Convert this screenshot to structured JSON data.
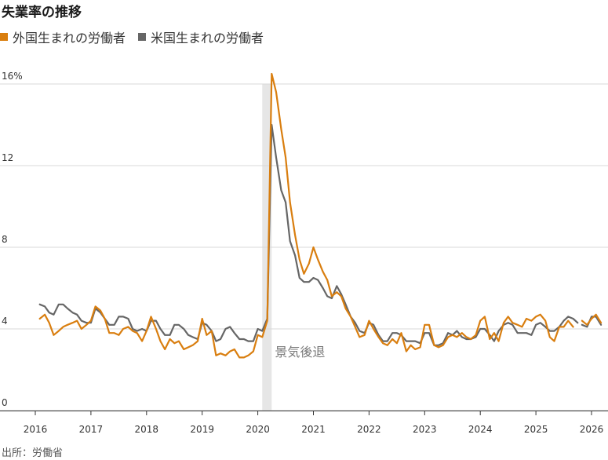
{
  "title": "失業率の推移",
  "source": "出所：労働省",
  "colors": {
    "foreign": "#d97e0f",
    "native": "#666666",
    "recession": "#e6e6e6",
    "grid": "#d8d8d8"
  },
  "chart_data": {
    "type": "line",
    "title": "失業率の推移",
    "xlabel": "",
    "ylabel": "",
    "xlim": [
      2016,
      2026.3
    ],
    "ylim": [
      0,
      16
    ],
    "yticks": [
      0,
      4,
      8,
      12,
      16
    ],
    "ytick_labels": [
      "0",
      "4",
      "8",
      "12",
      "16%"
    ],
    "xticks": [
      "2016",
      "2017",
      "2018",
      "2019",
      "2020",
      "2021",
      "2022",
      "2023",
      "2024",
      "2025",
      "2026"
    ],
    "grid": "horizontal",
    "legend_position": "top-left",
    "recession": {
      "start": 2020.08,
      "end": 2020.25,
      "label": "景気後退"
    },
    "series": [
      {
        "name": "外国生まれの労働者",
        "color_key": "foreign",
        "segments": [
          [
            [
              2016.08,
              4.5
            ],
            [
              2016.17,
              4.7
            ],
            [
              2016.25,
              4.3
            ],
            [
              2016.33,
              3.7
            ],
            [
              2016.42,
              3.9
            ],
            [
              2016.5,
              4.1
            ],
            [
              2016.58,
              4.2
            ],
            [
              2016.67,
              4.3
            ],
            [
              2016.75,
              4.4
            ],
            [
              2016.83,
              4.0
            ],
            [
              2016.92,
              4.2
            ],
            [
              2017.0,
              4.4
            ],
            [
              2017.08,
              5.1
            ],
            [
              2017.17,
              4.9
            ],
            [
              2017.25,
              4.5
            ],
            [
              2017.33,
              3.8
            ],
            [
              2017.42,
              3.8
            ],
            [
              2017.5,
              3.7
            ],
            [
              2017.58,
              4.0
            ],
            [
              2017.67,
              4.1
            ],
            [
              2017.75,
              3.9
            ],
            [
              2017.83,
              3.8
            ],
            [
              2017.92,
              3.4
            ],
            [
              2018.0,
              3.9
            ],
            [
              2018.08,
              4.6
            ],
            [
              2018.17,
              4.0
            ],
            [
              2018.25,
              3.4
            ],
            [
              2018.33,
              3.0
            ],
            [
              2018.42,
              3.5
            ],
            [
              2018.5,
              3.3
            ],
            [
              2018.58,
              3.4
            ],
            [
              2018.67,
              3.0
            ],
            [
              2018.75,
              3.1
            ],
            [
              2018.83,
              3.2
            ],
            [
              2018.92,
              3.4
            ],
            [
              2019.0,
              4.5
            ],
            [
              2019.08,
              3.7
            ],
            [
              2019.17,
              3.9
            ],
            [
              2019.25,
              2.7
            ],
            [
              2019.33,
              2.8
            ],
            [
              2019.42,
              2.7
            ],
            [
              2019.5,
              2.9
            ],
            [
              2019.58,
              3.0
            ],
            [
              2019.67,
              2.6
            ],
            [
              2019.75,
              2.6
            ],
            [
              2019.83,
              2.7
            ],
            [
              2019.92,
              2.9
            ],
            [
              2020.0,
              3.7
            ],
            [
              2020.08,
              3.6
            ],
            [
              2020.17,
              4.4
            ],
            [
              2020.25,
              16.5
            ],
            [
              2020.33,
              15.6
            ],
            [
              2020.42,
              13.8
            ],
            [
              2020.5,
              12.4
            ],
            [
              2020.58,
              10.2
            ],
            [
              2020.67,
              8.6
            ],
            [
              2020.75,
              7.4
            ],
            [
              2020.83,
              6.7
            ],
            [
              2020.92,
              7.2
            ],
            [
              2021.0,
              8.0
            ],
            [
              2021.08,
              7.4
            ],
            [
              2021.17,
              6.8
            ],
            [
              2021.25,
              6.4
            ],
            [
              2021.33,
              5.6
            ],
            [
              2021.42,
              5.8
            ],
            [
              2021.5,
              5.6
            ],
            [
              2021.58,
              5.0
            ],
            [
              2021.67,
              4.6
            ],
            [
              2021.75,
              4.1
            ],
            [
              2021.83,
              3.6
            ],
            [
              2021.92,
              3.7
            ],
            [
              2022.0,
              4.4
            ],
            [
              2022.08,
              4.0
            ],
            [
              2022.17,
              3.6
            ],
            [
              2022.25,
              3.3
            ],
            [
              2022.33,
              3.2
            ],
            [
              2022.42,
              3.5
            ],
            [
              2022.5,
              3.3
            ],
            [
              2022.58,
              3.8
            ],
            [
              2022.67,
              2.9
            ],
            [
              2022.75,
              3.2
            ],
            [
              2022.83,
              3.0
            ],
            [
              2022.92,
              3.1
            ],
            [
              2023.0,
              4.2
            ],
            [
              2023.08,
              4.2
            ],
            [
              2023.17,
              3.2
            ],
            [
              2023.25,
              3.1
            ],
            [
              2023.33,
              3.2
            ],
            [
              2023.42,
              3.6
            ],
            [
              2023.5,
              3.7
            ],
            [
              2023.58,
              3.6
            ],
            [
              2023.67,
              3.8
            ],
            [
              2023.75,
              3.6
            ],
            [
              2023.83,
              3.5
            ],
            [
              2023.92,
              3.7
            ],
            [
              2024.0,
              4.4
            ],
            [
              2024.08,
              4.6
            ],
            [
              2024.17,
              3.5
            ],
            [
              2024.25,
              3.8
            ],
            [
              2024.33,
              3.4
            ],
            [
              2024.42,
              4.3
            ],
            [
              2024.5,
              4.6
            ],
            [
              2024.58,
              4.3
            ],
            [
              2024.67,
              4.2
            ],
            [
              2024.75,
              4.1
            ],
            [
              2024.83,
              4.5
            ],
            [
              2024.92,
              4.4
            ],
            [
              2025.0,
              4.6
            ],
            [
              2025.08,
              4.7
            ],
            [
              2025.17,
              4.4
            ],
            [
              2025.25,
              3.6
            ],
            [
              2025.33,
              3.4
            ],
            [
              2025.42,
              4.1
            ],
            [
              2025.5,
              4.1
            ],
            [
              2025.58,
              4.4
            ],
            [
              2025.67,
              4.1
            ]
          ],
          [
            [
              2025.83,
              4.4
            ],
            [
              2025.92,
              4.2
            ],
            [
              2026.0,
              4.5
            ],
            [
              2026.08,
              4.7
            ],
            [
              2026.17,
              4.3
            ]
          ]
        ]
      },
      {
        "name": "米国生まれの労働者",
        "color_key": "native",
        "segments": [
          [
            [
              2016.08,
              5.2
            ],
            [
              2016.17,
              5.1
            ],
            [
              2016.25,
              4.8
            ],
            [
              2016.33,
              4.7
            ],
            [
              2016.42,
              5.2
            ],
            [
              2016.5,
              5.2
            ],
            [
              2016.58,
              5.0
            ],
            [
              2016.67,
              4.8
            ],
            [
              2016.75,
              4.7
            ],
            [
              2016.83,
              4.4
            ],
            [
              2016.92,
              4.3
            ],
            [
              2017.0,
              4.3
            ],
            [
              2017.08,
              5.0
            ],
            [
              2017.17,
              4.8
            ],
            [
              2017.25,
              4.5
            ],
            [
              2017.33,
              4.2
            ],
            [
              2017.42,
              4.2
            ],
            [
              2017.5,
              4.6
            ],
            [
              2017.58,
              4.6
            ],
            [
              2017.67,
              4.5
            ],
            [
              2017.75,
              4.0
            ],
            [
              2017.83,
              3.9
            ],
            [
              2017.92,
              4.0
            ],
            [
              2018.0,
              3.9
            ],
            [
              2018.08,
              4.4
            ],
            [
              2018.17,
              4.4
            ],
            [
              2018.25,
              4.0
            ],
            [
              2018.33,
              3.7
            ],
            [
              2018.42,
              3.7
            ],
            [
              2018.5,
              4.2
            ],
            [
              2018.58,
              4.2
            ],
            [
              2018.67,
              4.0
            ],
            [
              2018.75,
              3.7
            ],
            [
              2018.83,
              3.6
            ],
            [
              2018.92,
              3.5
            ],
            [
              2019.0,
              4.3
            ],
            [
              2019.08,
              4.2
            ],
            [
              2019.17,
              3.9
            ],
            [
              2019.25,
              3.4
            ],
            [
              2019.33,
              3.5
            ],
            [
              2019.42,
              4.0
            ],
            [
              2019.5,
              4.1
            ],
            [
              2019.58,
              3.8
            ],
            [
              2019.67,
              3.5
            ],
            [
              2019.75,
              3.5
            ],
            [
              2019.83,
              3.4
            ],
            [
              2019.92,
              3.4
            ],
            [
              2020.0,
              4.0
            ],
            [
              2020.08,
              3.9
            ],
            [
              2020.17,
              4.5
            ],
            [
              2020.25,
              14.0
            ],
            [
              2020.33,
              12.4
            ],
            [
              2020.42,
              10.8
            ],
            [
              2020.5,
              10.2
            ],
            [
              2020.58,
              8.3
            ],
            [
              2020.67,
              7.6
            ],
            [
              2020.75,
              6.5
            ],
            [
              2020.83,
              6.3
            ],
            [
              2020.92,
              6.3
            ],
            [
              2021.0,
              6.5
            ],
            [
              2021.08,
              6.4
            ],
            [
              2021.17,
              6.0
            ],
            [
              2021.25,
              5.6
            ],
            [
              2021.33,
              5.5
            ],
            [
              2021.42,
              6.1
            ],
            [
              2021.5,
              5.7
            ],
            [
              2021.58,
              5.2
            ],
            [
              2021.67,
              4.6
            ],
            [
              2021.75,
              4.3
            ],
            [
              2021.83,
              3.9
            ],
            [
              2021.92,
              3.8
            ],
            [
              2022.0,
              4.3
            ],
            [
              2022.08,
              4.2
            ],
            [
              2022.17,
              3.7
            ],
            [
              2022.25,
              3.4
            ],
            [
              2022.33,
              3.4
            ],
            [
              2022.42,
              3.8
            ],
            [
              2022.5,
              3.8
            ],
            [
              2022.58,
              3.7
            ],
            [
              2022.67,
              3.4
            ],
            [
              2022.75,
              3.4
            ],
            [
              2022.83,
              3.4
            ],
            [
              2022.92,
              3.3
            ],
            [
              2023.0,
              3.8
            ],
            [
              2023.08,
              3.8
            ],
            [
              2023.17,
              3.2
            ],
            [
              2023.25,
              3.2
            ],
            [
              2023.33,
              3.3
            ],
            [
              2023.42,
              3.8
            ],
            [
              2023.5,
              3.7
            ],
            [
              2023.58,
              3.9
            ],
            [
              2023.67,
              3.6
            ],
            [
              2023.75,
              3.5
            ],
            [
              2023.83,
              3.5
            ],
            [
              2023.92,
              3.6
            ],
            [
              2024.0,
              4.0
            ],
            [
              2024.08,
              4.0
            ],
            [
              2024.17,
              3.7
            ],
            [
              2024.25,
              3.4
            ],
            [
              2024.33,
              3.9
            ],
            [
              2024.42,
              4.2
            ],
            [
              2024.5,
              4.3
            ],
            [
              2024.58,
              4.2
            ],
            [
              2024.67,
              3.8
            ],
            [
              2024.75,
              3.8
            ],
            [
              2024.83,
              3.8
            ],
            [
              2024.92,
              3.7
            ],
            [
              2025.0,
              4.2
            ],
            [
              2025.08,
              4.3
            ],
            [
              2025.17,
              4.1
            ],
            [
              2025.25,
              3.9
            ],
            [
              2025.33,
              3.9
            ],
            [
              2025.42,
              4.1
            ],
            [
              2025.5,
              4.4
            ],
            [
              2025.58,
              4.6
            ],
            [
              2025.67,
              4.5
            ],
            [
              2025.75,
              4.3
            ]
          ],
          [
            [
              2025.83,
              4.2
            ],
            [
              2025.92,
              4.1
            ],
            [
              2026.0,
              4.6
            ],
            [
              2026.08,
              4.6
            ],
            [
              2026.17,
              4.2
            ]
          ]
        ]
      }
    ]
  }
}
